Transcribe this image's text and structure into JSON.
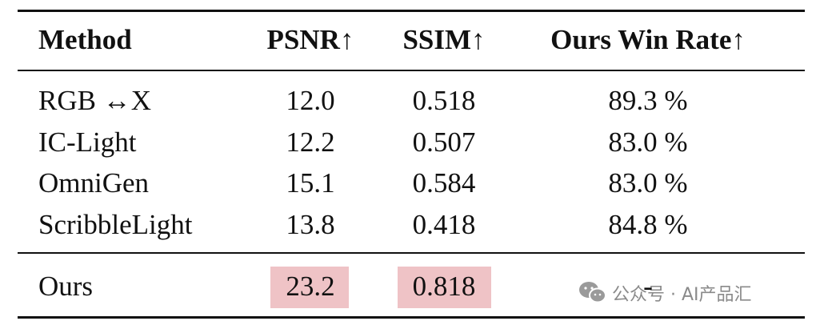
{
  "table": {
    "header": [
      "Method",
      "PSNR↑",
      "SSIM↑",
      "Ours Win Rate↑"
    ],
    "rows": [
      [
        "RGB ↔X",
        "12.0",
        "0.518",
        "89.3 %"
      ],
      [
        "IC-Light",
        "12.2",
        "0.507",
        "83.0 %"
      ],
      [
        "OmniGen",
        "15.1",
        "0.584",
        "83.0 %"
      ],
      [
        "ScribbleLight",
        "13.8",
        "0.418",
        "84.8 %"
      ]
    ],
    "final_row": [
      "Ours",
      "23.2",
      "0.818",
      "-"
    ]
  },
  "watermark": "公众号 · AI产品汇"
}
